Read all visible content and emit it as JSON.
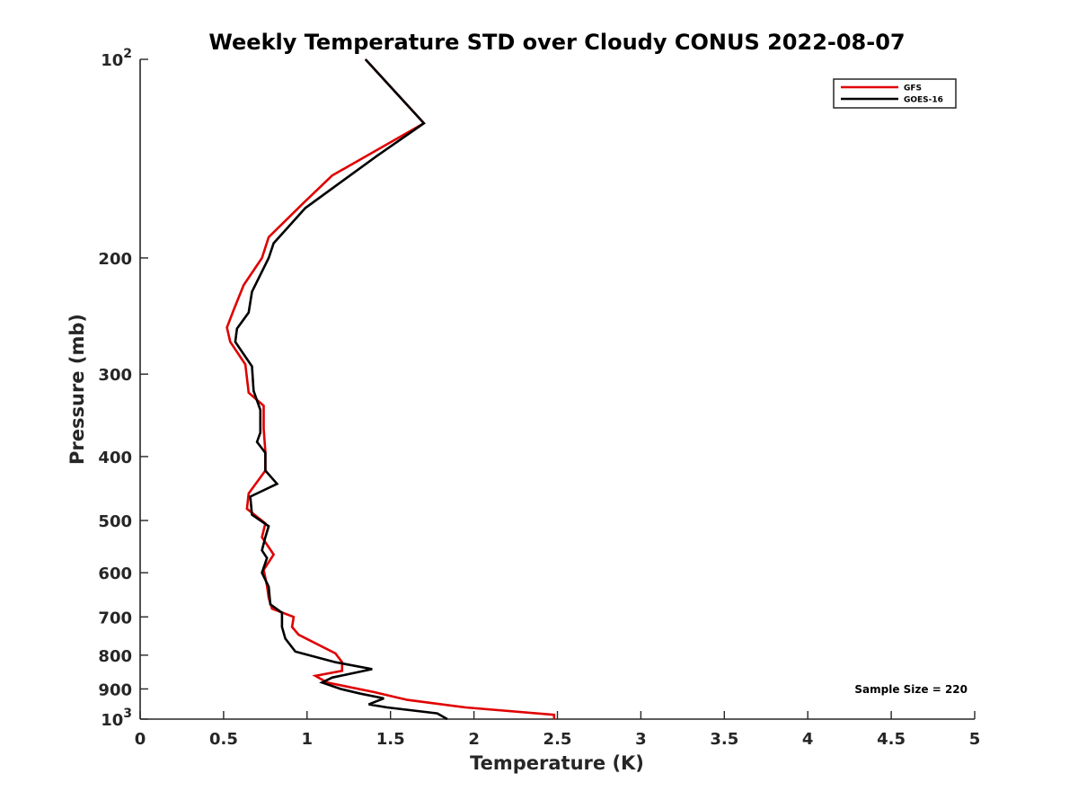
{
  "chart_data": {
    "type": "line",
    "title": "Weekly Temperature STD over Cloudy CONUS 2022-08-07",
    "xlabel": "Temperature (K)",
    "ylabel": "Pressure (mb)",
    "xlim": [
      0,
      5
    ],
    "ylim": [
      100,
      1000
    ],
    "y_scale": "log",
    "y_reversed": true,
    "grid": false,
    "legend_position": "top-right",
    "x_ticks": [
      {
        "value": 0,
        "label": "0"
      },
      {
        "value": 0.5,
        "label": "0.5"
      },
      {
        "value": 1,
        "label": "1"
      },
      {
        "value": 1.5,
        "label": "1.5"
      },
      {
        "value": 2,
        "label": "2"
      },
      {
        "value": 2.5,
        "label": "2.5"
      },
      {
        "value": 3,
        "label": "3"
      },
      {
        "value": 3.5,
        "label": "3.5"
      },
      {
        "value": 4,
        "label": "4"
      },
      {
        "value": 4.5,
        "label": "4.5"
      },
      {
        "value": 5,
        "label": "5"
      }
    ],
    "y_ticks": [
      {
        "value": 100,
        "base": "10",
        "exp": "2"
      },
      {
        "value": 200,
        "label": "200"
      },
      {
        "value": 300,
        "label": "300"
      },
      {
        "value": 400,
        "label": "400"
      },
      {
        "value": 500,
        "label": "500"
      },
      {
        "value": 600,
        "label": "600"
      },
      {
        "value": 700,
        "label": "700"
      },
      {
        "value": 800,
        "label": "800"
      },
      {
        "value": 900,
        "label": "900"
      },
      {
        "value": 1000,
        "base": "10",
        "exp": "3"
      }
    ],
    "annotation": "Sample Size = 220",
    "series": [
      {
        "name": "GFS",
        "color": "#e00000",
        "points": [
          [
            1.35,
            100
          ],
          [
            1.7,
            125
          ],
          [
            1.15,
            150
          ],
          [
            0.98,
            165
          ],
          [
            0.77,
            186
          ],
          [
            0.73,
            200
          ],
          [
            0.62,
            220
          ],
          [
            0.56,
            240
          ],
          [
            0.52,
            255
          ],
          [
            0.54,
            268
          ],
          [
            0.63,
            290
          ],
          [
            0.65,
            320
          ],
          [
            0.74,
            335
          ],
          [
            0.74,
            363
          ],
          [
            0.75,
            393
          ],
          [
            0.75,
            420
          ],
          [
            0.65,
            455
          ],
          [
            0.64,
            480
          ],
          [
            0.75,
            505
          ],
          [
            0.73,
            530
          ],
          [
            0.8,
            563
          ],
          [
            0.74,
            594
          ],
          [
            0.76,
            628
          ],
          [
            0.77,
            655
          ],
          [
            0.79,
            680
          ],
          [
            0.92,
            700
          ],
          [
            0.91,
            725
          ],
          [
            0.95,
            745
          ],
          [
            1.17,
            795
          ],
          [
            1.21,
            820
          ],
          [
            1.21,
            845
          ],
          [
            1.05,
            860
          ],
          [
            1.12,
            880
          ],
          [
            1.4,
            910
          ],
          [
            1.6,
            935
          ],
          [
            1.95,
            960
          ],
          [
            2.48,
            985
          ],
          [
            2.48,
            1000
          ]
        ]
      },
      {
        "name": "GOES-16",
        "color": "#000000",
        "points": [
          [
            1.35,
            100
          ],
          [
            1.7,
            125
          ],
          [
            1.42,
            140
          ],
          [
            0.99,
            168
          ],
          [
            0.8,
            190
          ],
          [
            0.77,
            200
          ],
          [
            0.67,
            225
          ],
          [
            0.65,
            242
          ],
          [
            0.58,
            256
          ],
          [
            0.57,
            268
          ],
          [
            0.67,
            292
          ],
          [
            0.68,
            318
          ],
          [
            0.72,
            340
          ],
          [
            0.72,
            368
          ],
          [
            0.7,
            380
          ],
          [
            0.75,
            395
          ],
          [
            0.75,
            420
          ],
          [
            0.82,
            440
          ],
          [
            0.66,
            460
          ],
          [
            0.67,
            490
          ],
          [
            0.77,
            510
          ],
          [
            0.75,
            530
          ],
          [
            0.73,
            555
          ],
          [
            0.76,
            570
          ],
          [
            0.73,
            600
          ],
          [
            0.77,
            630
          ],
          [
            0.78,
            670
          ],
          [
            0.85,
            690
          ],
          [
            0.85,
            725
          ],
          [
            0.87,
            755
          ],
          [
            0.93,
            790
          ],
          [
            1.17,
            820
          ],
          [
            1.39,
            840
          ],
          [
            1.15,
            865
          ],
          [
            1.09,
            880
          ],
          [
            1.2,
            900
          ],
          [
            1.32,
            915
          ],
          [
            1.46,
            930
          ],
          [
            1.37,
            950
          ],
          [
            1.48,
            960
          ],
          [
            1.78,
            980
          ],
          [
            1.84,
            1000
          ]
        ]
      }
    ]
  }
}
